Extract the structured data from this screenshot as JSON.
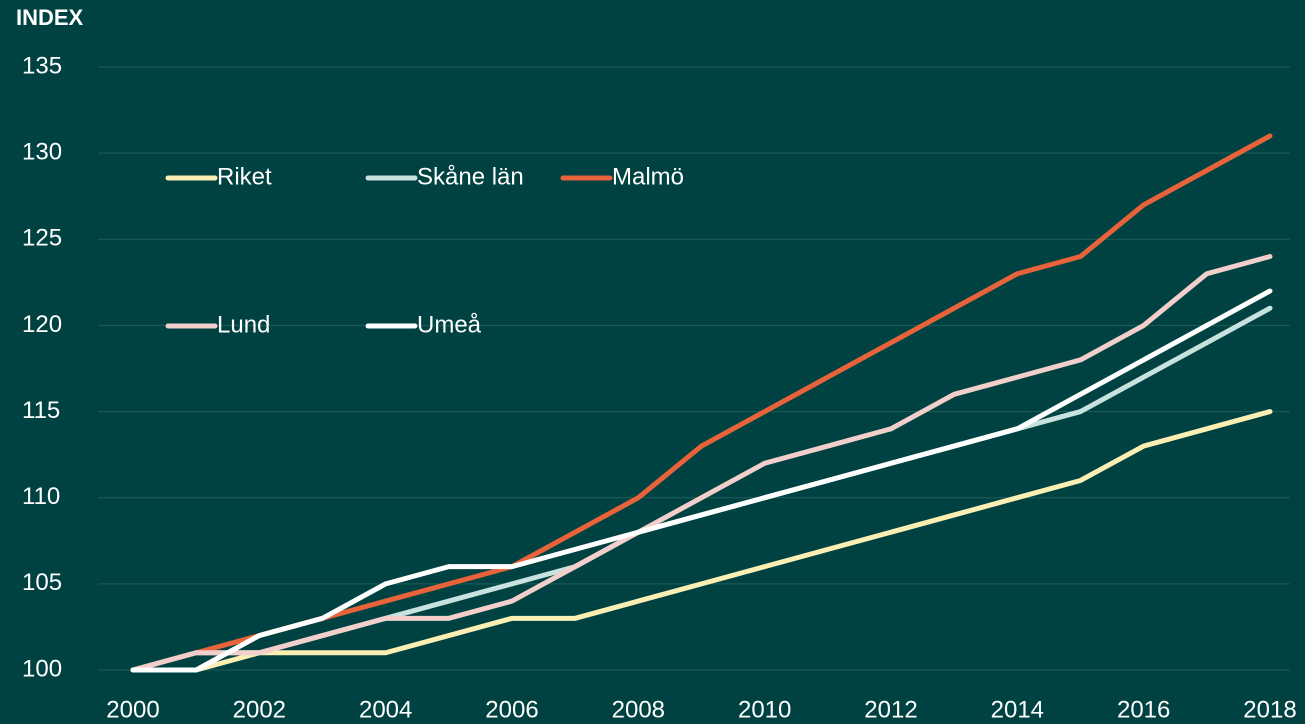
{
  "chart_data": {
    "type": "line",
    "y_axis_label": "INDEX",
    "x": [
      2000,
      2001,
      2002,
      2003,
      2004,
      2005,
      2006,
      2007,
      2008,
      2009,
      2010,
      2011,
      2012,
      2013,
      2014,
      2015,
      2016,
      2017,
      2018
    ],
    "series": [
      {
        "name": "Riket",
        "color": "#fbefb4",
        "values": [
          100,
          100,
          101,
          101,
          101,
          102,
          103,
          103,
          104,
          105,
          106,
          107,
          108,
          109,
          110,
          111,
          113,
          114,
          115
        ]
      },
      {
        "name": "Skåne län",
        "color": "#c7e2df",
        "values": [
          100,
          101,
          101,
          102,
          103,
          104,
          105,
          106,
          108,
          109,
          110,
          111,
          112,
          113,
          114,
          115,
          117,
          119,
          121
        ]
      },
      {
        "name": "Malmö",
        "color": "#e8623a",
        "values": [
          100,
          101,
          102,
          103,
          104,
          105,
          106,
          108,
          110,
          113,
          115,
          117,
          119,
          121,
          123,
          124,
          127,
          129,
          131
        ]
      },
      {
        "name": "Lund",
        "color": "#f2cfcb",
        "values": [
          100,
          101,
          101,
          102,
          103,
          103,
          104,
          106,
          108,
          110,
          112,
          113,
          114,
          116,
          117,
          118,
          120,
          123,
          124
        ]
      },
      {
        "name": "Umeå",
        "color": "#ffffff",
        "values": [
          100,
          100,
          102,
          103,
          105,
          106,
          106,
          107,
          108,
          109,
          110,
          111,
          112,
          113,
          114,
          116,
          118,
          120,
          122
        ]
      }
    ],
    "xlim": [
      2000,
      2018
    ],
    "xticks": [
      2000,
      2002,
      2004,
      2006,
      2008,
      2010,
      2012,
      2014,
      2016,
      2018
    ],
    "ylim": [
      100,
      135
    ],
    "yticks": [
      100,
      105,
      110,
      115,
      120,
      125,
      130,
      135
    ],
    "grid": true
  }
}
